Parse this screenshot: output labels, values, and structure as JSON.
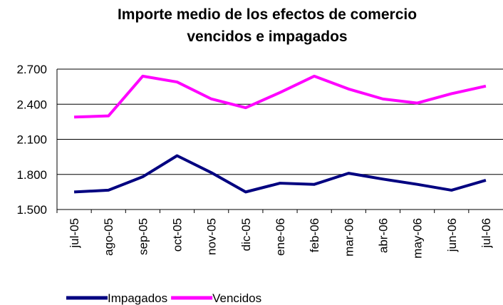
{
  "chart_data": {
    "type": "line",
    "title": "Importe medio de los efectos de comercio vencidos e impagados",
    "categories": [
      "jul-05",
      "ago-05",
      "sep-05",
      "oct-05",
      "nov-05",
      "dic-05",
      "ene-06",
      "feb-06",
      "mar-06",
      "abr-06",
      "may-06",
      "jun-06",
      "jul-06"
    ],
    "series": [
      {
        "name": "Impagados",
        "color": "#000080",
        "values": [
          1650,
          1665,
          1780,
          1960,
          1815,
          1650,
          1725,
          1715,
          1810,
          1760,
          1715,
          1665,
          1750
        ]
      },
      {
        "name": "Vencidos",
        "color": "#ff00ff",
        "values": [
          2290,
          2300,
          2640,
          2590,
          2445,
          2370,
          2500,
          2640,
          2530,
          2445,
          2410,
          2490,
          2555
        ]
      }
    ],
    "ylim": [
      1500,
      2700
    ],
    "yticks": [
      {
        "value": 1500,
        "label": "1.500"
      },
      {
        "value": 1800,
        "label": "1.800"
      },
      {
        "value": 2100,
        "label": "2.100"
      },
      {
        "value": 2400,
        "label": "2.400"
      },
      {
        "value": 2700,
        "label": "2.700"
      }
    ],
    "grid": true,
    "legend": "bottom"
  }
}
